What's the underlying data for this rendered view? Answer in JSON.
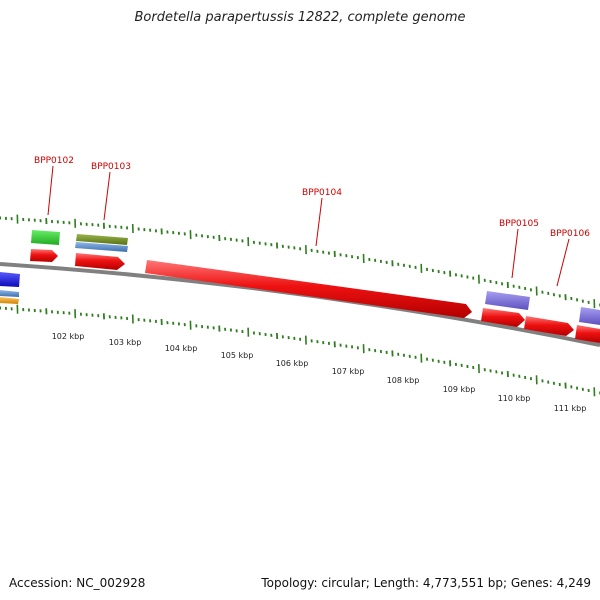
{
  "header": {
    "title": "Bordetella parapertussis 12822, complete genome"
  },
  "footer": {
    "accession": "Accession: NC_002928",
    "summary": "Topology: circular; Length: 4,773,551 bp; Genes: 4,249"
  },
  "map": {
    "backbone_color": "#808080",
    "tick_color": "#2e7d1e",
    "label_color": "#cc0000",
    "scale_labels": [
      "102 kbp",
      "103 kbp",
      "104 kbp",
      "105 kbp",
      "106 kbp",
      "107 kbp",
      "108 kbp",
      "109 kbp",
      "110 kbp",
      "111 kbp"
    ],
    "gene_labels": [
      "BPP0102",
      "BPP0103",
      "BPP0104",
      "BPP0105",
      "BPP0106"
    ],
    "gene_colors": {
      "cds": "#ee1111",
      "green": "#33cc33",
      "olive": "#6f8a1f",
      "steel": "#4f86c6",
      "purple": "#7b6ed8",
      "blue": "#1a1ae6",
      "orange": "#f0a020"
    }
  }
}
